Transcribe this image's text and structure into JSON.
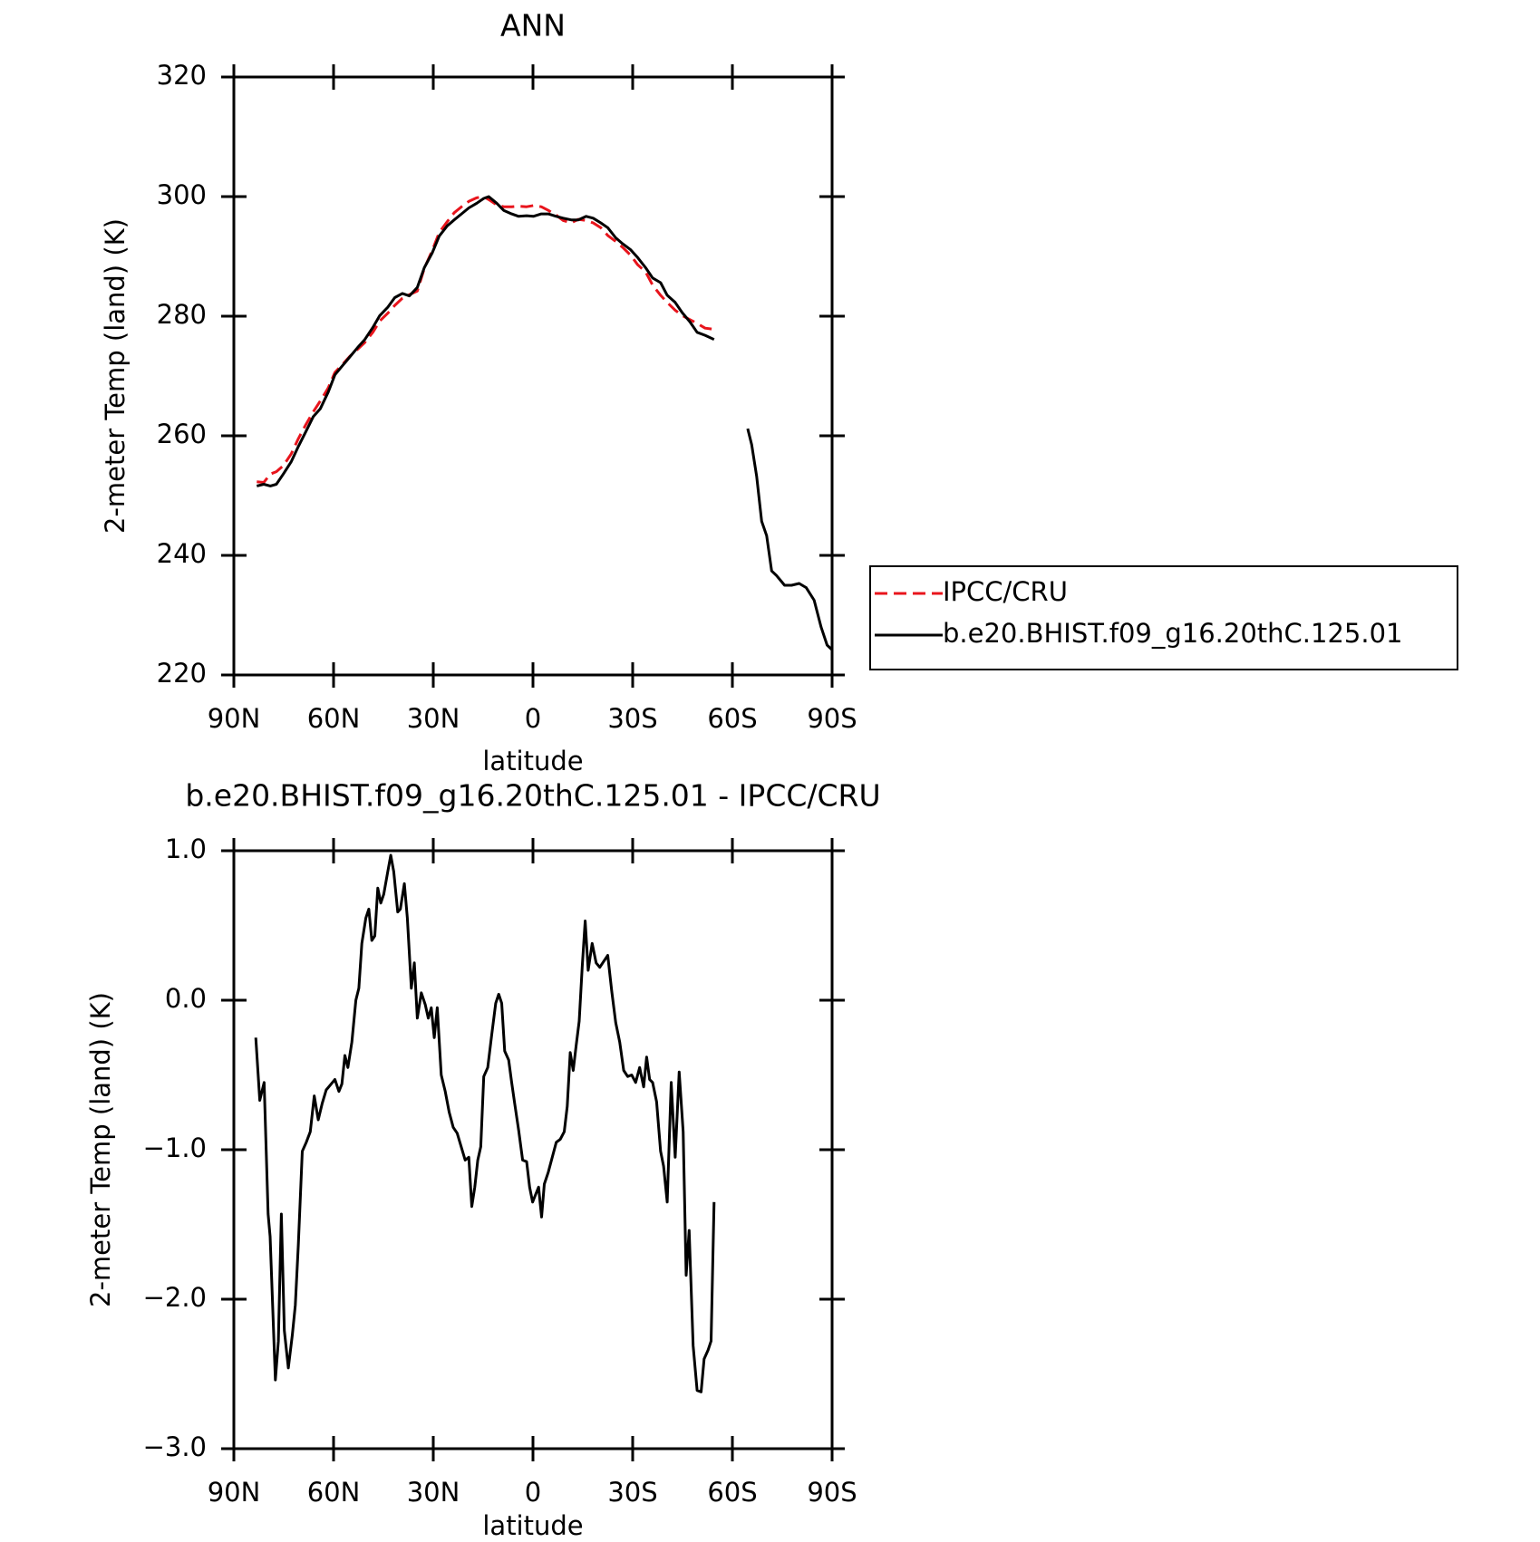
{
  "chart_data": [
    {
      "type": "line",
      "title": "ANN",
      "xlabel": "latitude",
      "ylabel": "2-meter Temp (land) (K)",
      "x": [
        83.1,
        81.0,
        79.0,
        77.2,
        75.1,
        72.7,
        70.6,
        68.5,
        66.1,
        64.0,
        61.6,
        59.6,
        57.2,
        55.1,
        52.7,
        50.6,
        48.2,
        46.1,
        43.7,
        41.6,
        39.3,
        37.2,
        34.8,
        32.7,
        30.3,
        28.2,
        25.8,
        23.7,
        21.3,
        19.3,
        16.9,
        14.8,
        13.3,
        10.9,
        8.8,
        6.4,
        4.3,
        1.9,
        -0.1,
        -2.5,
        -4.6,
        -7.0,
        -9.1,
        -11.5,
        -13.6,
        -16.0,
        -18.1,
        -20.4,
        -22.5,
        -24.9,
        -27.0,
        -29.4,
        -31.5,
        -33.9,
        -36.0,
        -38.4,
        -40.4,
        -42.8,
        -44.9,
        -47.3,
        -49.4,
        -51.8,
        -54.5,
        -59.0,
        -64.6,
        -65.8,
        -67.3,
        -68.8,
        -70.3,
        -71.8,
        -73.3,
        -75.7,
        -77.8,
        -80.1,
        -82.2,
        -84.6,
        -86.7,
        -88.5,
        -90.0
      ],
      "series": [
        {
          "name": "IPCC/CRU",
          "color": "#e8141c",
          "dashed": true,
          "values": [
            252.3,
            252.2,
            253.6,
            254.0,
            255.0,
            257.0,
            259.5,
            261.7,
            264.0,
            265.8,
            268.0,
            270.6,
            272.0,
            273.3,
            274.5,
            275.6,
            277.3,
            279.2,
            280.5,
            281.8,
            283.0,
            283.6,
            284.2,
            288.0,
            291.0,
            294.0,
            295.8,
            297.3,
            298.4,
            299.2,
            299.8,
            300.0,
            299.5,
            298.6,
            298.3,
            298.3,
            298.4,
            298.3,
            298.5,
            298.3,
            297.7,
            296.9,
            296.0,
            295.6,
            296.2,
            296.0,
            295.6,
            294.8,
            293.5,
            292.5,
            291.5,
            290.2,
            288.6,
            287.4,
            285.2,
            283.5,
            282.3,
            281.0,
            280.1,
            279.4,
            278.8,
            278.0,
            277.8,
            null,
            null,
            null,
            null,
            null,
            null,
            null,
            null,
            null,
            null,
            null,
            null,
            null,
            null,
            null,
            null
          ]
        },
        {
          "name": "b.e20.BHIST.f09_g16.20thC.125.01",
          "color": "#000000",
          "dashed": false,
          "values": [
            251.6,
            251.9,
            251.6,
            251.9,
            253.6,
            255.7,
            258.2,
            260.5,
            263.2,
            264.5,
            267.3,
            270.2,
            271.8,
            273.2,
            274.8,
            276.1,
            278.1,
            280.1,
            281.5,
            283.1,
            283.8,
            283.4,
            284.8,
            288.1,
            290.6,
            293.4,
            295.1,
            296.1,
            297.2,
            298.1,
            298.9,
            299.7,
            300.0,
            298.9,
            297.7,
            297.1,
            296.7,
            296.8,
            296.7,
            297.1,
            297.1,
            296.7,
            296.4,
            296.1,
            296.1,
            296.7,
            296.4,
            295.6,
            294.8,
            293.1,
            292.1,
            291.1,
            289.8,
            288.1,
            286.4,
            285.6,
            283.5,
            282.3,
            280.6,
            279.0,
            277.3,
            276.8,
            276.1,
            null,
            261.2,
            258.5,
            253.2,
            245.7,
            243.3,
            237.4,
            236.6,
            235.0,
            235.0,
            235.3,
            234.6,
            232.5,
            228.0,
            225.0,
            224.2
          ]
        }
      ],
      "xlim": [
        90,
        -90
      ],
      "xticks": [
        {
          "value": 90,
          "label": "90N"
        },
        {
          "value": 60,
          "label": "60N"
        },
        {
          "value": 30,
          "label": "30N"
        },
        0,
        {
          "value": -30,
          "label": "30S"
        },
        {
          "value": -60,
          "label": "60S"
        },
        {
          "value": -90,
          "label": "90S"
        }
      ],
      "ylim": [
        220,
        320
      ],
      "yticks": [
        220,
        240,
        260,
        280,
        300,
        320
      ],
      "legend": "right"
    },
    {
      "type": "line",
      "title": "b.e20.BHIST.f09_g16.20thC.125.01 - IPCC/CRU",
      "xlabel": "latitude",
      "ylabel": "2-meter Temp (land) (K)",
      "x": [
        83.4,
        82.2,
        80.9,
        79.7,
        79.1,
        77.5,
        76.6,
        75.7,
        74.8,
        73.6,
        72.4,
        71.5,
        70.6,
        69.4,
        68.2,
        67.0,
        65.8,
        64.6,
        63.4,
        62.2,
        60.7,
        59.6,
        58.4,
        57.5,
        56.6,
        55.7,
        54.5,
        53.3,
        52.4,
        51.5,
        50.3,
        49.4,
        48.5,
        47.6,
        46.7,
        45.8,
        44.9,
        43.7,
        42.8,
        41.9,
        40.7,
        39.9,
        38.7,
        37.8,
        36.6,
        35.7,
        34.8,
        33.6,
        32.4,
        31.5,
        30.6,
        29.7,
        28.8,
        27.6,
        26.4,
        25.2,
        24.0,
        22.8,
        21.6,
        20.4,
        19.3,
        18.4,
        17.5,
        16.6,
        15.7,
        14.8,
        13.6,
        12.4,
        11.2,
        10.3,
        9.4,
        8.5,
        7.3,
        6.4,
        5.5,
        4.3,
        3.1,
        1.9,
        1.0,
        0.1,
        -0.8,
        -1.7,
        -2.6,
        -3.4,
        -4.6,
        -5.8,
        -7.0,
        -8.2,
        -9.4,
        -10.3,
        -11.2,
        -12.1,
        -13.0,
        -13.9,
        -14.8,
        -15.7,
        -16.6,
        -17.8,
        -19.0,
        -20.1,
        -21.3,
        -22.5,
        -23.7,
        -24.9,
        -26.1,
        -27.3,
        -28.5,
        -29.7,
        -30.9,
        -32.1,
        -33.3,
        -34.2,
        -35.1,
        -36.0,
        -37.2,
        -38.4,
        -39.3,
        -40.4,
        -41.6,
        -42.8,
        -44.0,
        -45.2,
        -46.1,
        -47.0,
        -48.2,
        -49.4,
        -50.6,
        -51.5,
        -52.7,
        -53.6,
        -54.5
      ],
      "values": [
        -0.25,
        -0.67,
        -0.55,
        -1.43,
        -1.58,
        -2.54,
        -2.28,
        -1.43,
        -2.21,
        -2.46,
        -2.24,
        -2.04,
        -1.64,
        -1.01,
        -0.95,
        -0.88,
        -0.64,
        -0.8,
        -0.69,
        -0.6,
        -0.56,
        -0.53,
        -0.61,
        -0.56,
        -0.37,
        -0.45,
        -0.28,
        0.0,
        0.08,
        0.38,
        0.55,
        0.61,
        0.4,
        0.43,
        0.75,
        0.65,
        0.71,
        0.86,
        0.97,
        0.86,
        0.59,
        0.61,
        0.78,
        0.55,
        0.08,
        0.25,
        -0.12,
        0.05,
        -0.03,
        -0.12,
        -0.05,
        -0.25,
        -0.05,
        -0.5,
        -0.61,
        -0.75,
        -0.85,
        -0.89,
        -0.98,
        -1.07,
        -1.05,
        -1.38,
        -1.25,
        -1.07,
        -0.98,
        -0.51,
        -0.45,
        -0.23,
        -0.02,
        0.04,
        -0.02,
        -0.34,
        -0.4,
        -0.55,
        -0.69,
        -0.87,
        -1.07,
        -1.08,
        -1.25,
        -1.35,
        -1.3,
        -1.25,
        -1.45,
        -1.23,
        -1.15,
        -1.05,
        -0.95,
        -0.93,
        -0.88,
        -0.71,
        -0.35,
        -0.47,
        -0.3,
        -0.14,
        0.22,
        0.53,
        0.2,
        0.38,
        0.25,
        0.22,
        0.26,
        0.3,
        0.06,
        -0.15,
        -0.28,
        -0.47,
        -0.51,
        -0.5,
        -0.55,
        -0.45,
        -0.58,
        -0.38,
        -0.53,
        -0.55,
        -0.68,
        -1.01,
        -1.11,
        -1.35,
        -0.55,
        -1.05,
        -0.48,
        -0.88,
        -1.84,
        -1.54,
        -2.31,
        -2.61,
        -2.62,
        -2.4,
        -2.34,
        -2.28,
        -1.35
      ],
      "color": "#000000",
      "xlim": [
        90,
        -90
      ],
      "xticks": [
        {
          "value": 90,
          "label": "90N"
        },
        {
          "value": 60,
          "label": "60N"
        },
        {
          "value": 30,
          "label": "30N"
        },
        0,
        {
          "value": -30,
          "label": "30S"
        },
        {
          "value": -60,
          "label": "60S"
        },
        {
          "value": -90,
          "label": "90S"
        }
      ],
      "ylim": [
        -3,
        1
      ],
      "yticks": [
        {
          "value": -3,
          "label": "−3.0"
        },
        {
          "value": -2,
          "label": "−2.0"
        },
        {
          "value": -1,
          "label": "−1.0"
        },
        {
          "value": 0,
          "label": "0.0"
        },
        {
          "value": 1,
          "label": "1.0"
        }
      ]
    }
  ]
}
